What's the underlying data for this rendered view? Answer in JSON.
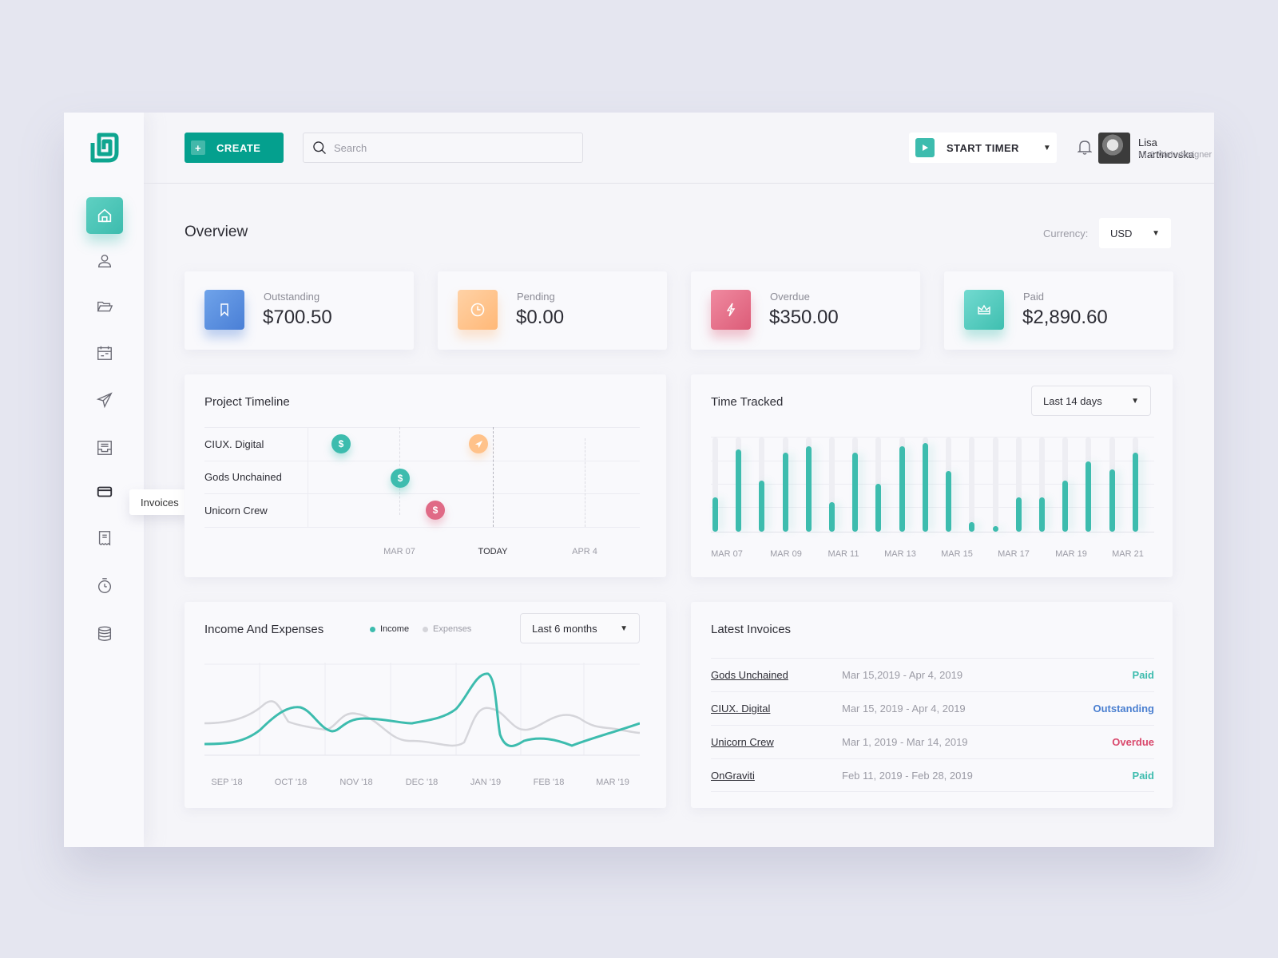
{
  "header": {
    "create_label": "CREATE",
    "search_placeholder": "Search",
    "timer_label": "START TIMER",
    "user": {
      "name": "Lisa Martinovska",
      "role": "UI & Web designer"
    }
  },
  "sidebar": {
    "items": [
      {
        "id": "home",
        "icon": "home-icon",
        "active": true
      },
      {
        "id": "clients",
        "icon": "user-icon"
      },
      {
        "id": "projects",
        "icon": "folder-icon"
      },
      {
        "id": "calendar",
        "icon": "calendar-icon"
      },
      {
        "id": "send",
        "icon": "paper-plane-icon"
      },
      {
        "id": "inbox",
        "icon": "inbox-icon"
      },
      {
        "id": "invoices",
        "icon": "credit-card-icon",
        "tooltip": "Invoices"
      },
      {
        "id": "receipts",
        "icon": "receipt-icon"
      },
      {
        "id": "timer",
        "icon": "stopwatch-icon"
      },
      {
        "id": "database",
        "icon": "database-icon"
      }
    ],
    "tooltip": "Invoices"
  },
  "overview": {
    "title": "Overview",
    "currency_label": "Currency:",
    "currency_value": "USD"
  },
  "stats": [
    {
      "label": "Outstanding",
      "value": "$700.50",
      "icon": "bookmark-icon",
      "color": "#5b8fe0"
    },
    {
      "label": "Pending",
      "value": "$0.00",
      "icon": "clock-icon",
      "color": "#ffc28a"
    },
    {
      "label": "Overdue",
      "value": "$350.00",
      "icon": "lightning-icon",
      "color": "#e06a86"
    },
    {
      "label": "Paid",
      "value": "$2,890.60",
      "icon": "crown-icon",
      "color": "#4fcabd"
    }
  ],
  "timeline": {
    "title": "Project Timeline",
    "rows": [
      "CIUX. Digital",
      "Gods Unchained",
      "Unicorn Crew"
    ],
    "axis": [
      "MAR 07",
      "TODAY",
      "APR 4"
    ],
    "markers": [
      {
        "row": 0,
        "type": "payment",
        "color": "#3dbcae",
        "glyph": "$"
      },
      {
        "row": 0,
        "type": "sent",
        "color": "#ffc28a",
        "glyph": "➤"
      },
      {
        "row": 1,
        "type": "payment",
        "color": "#3dbcae",
        "glyph": "$"
      },
      {
        "row": 2,
        "type": "payment",
        "color": "#e06a86",
        "glyph": "$"
      }
    ]
  },
  "time_tracked": {
    "title": "Time Tracked",
    "range": "Last 14 days",
    "axis": [
      "MAR 07",
      "MAR 09",
      "MAR 11",
      "MAR 13",
      "MAR 15",
      "MAR 17",
      "MAR 19",
      "MAR 21"
    ]
  },
  "income": {
    "title": "Income And Expenses",
    "legend_income": "Income",
    "legend_expenses": "Expenses",
    "range": "Last 6 months",
    "axis": [
      "SEP '18",
      "OCT '18",
      "NOV '18",
      "DEC '18",
      "JAN '19",
      "FEB '18",
      "MAR '19"
    ]
  },
  "invoices": {
    "title": "Latest Invoices",
    "rows": [
      {
        "client": "Gods Unchained",
        "dates": "Mar 15,2019   -   Apr 4, 2019",
        "status": "Paid",
        "color": "#3dbcae"
      },
      {
        "client": "CIUX. Digital",
        "dates": "Mar 15, 2019   -   Apr 4, 2019",
        "status": "Outstanding",
        "color": "#4a7fd0"
      },
      {
        "client": "Unicorn Crew",
        "dates": "Mar 1, 2019   -   Mar 14, 2019",
        "status": "Overdue",
        "color": "#d9476b"
      },
      {
        "client": "OnGraviti",
        "dates": "Feb 11, 2019  -   Feb 28, 2019",
        "status": "Paid",
        "color": "#3dbcae"
      }
    ]
  },
  "chart_data": [
    {
      "type": "bar",
      "title": "Time Tracked",
      "categories": [
        "MAR 07",
        "",
        "MAR 09",
        "",
        "MAR 11",
        "",
        "MAR 13",
        "",
        "MAR 15",
        "",
        "MAR 17",
        "",
        "MAR 19",
        "",
        "MAR 21",
        "",
        "",
        "",
        ""
      ],
      "x": [
        1,
        2,
        3,
        4,
        5,
        6,
        7,
        8,
        9,
        10,
        11,
        12,
        13,
        14,
        15,
        16,
        17,
        18,
        19
      ],
      "values": [
        42,
        100,
        62,
        96,
        104,
        36,
        96,
        58,
        104,
        108,
        74,
        12,
        6,
        42,
        42,
        62,
        86,
        76,
        96
      ],
      "ylim": [
        0,
        115
      ],
      "xlabel": "",
      "ylabel": "",
      "grid": true
    },
    {
      "type": "line",
      "title": "Income And Expenses",
      "categories": [
        "SEP '18",
        "OCT '18",
        "NOV '18",
        "DEC '18",
        "JAN '19",
        "FEB '18",
        "MAR '19"
      ],
      "series": [
        {
          "name": "Income",
          "color": "#3dbcae",
          "values": [
            15,
            55,
            35,
            42,
            95,
            25,
            45
          ]
        },
        {
          "name": "Expenses",
          "color": "#d5d5da",
          "values": [
            40,
            40,
            45,
            25,
            55,
            50,
            37
          ]
        }
      ],
      "legend_position": "top",
      "grid": true
    }
  ]
}
